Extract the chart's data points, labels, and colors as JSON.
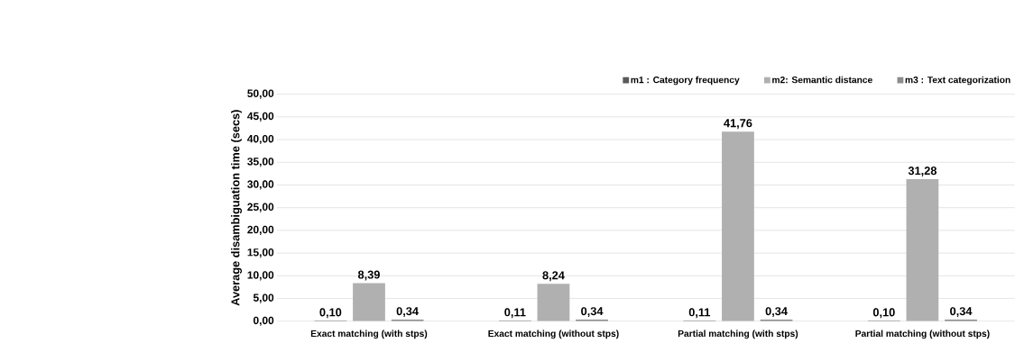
{
  "chart_data": {
    "type": "bar",
    "ylabel": "Average disambiguation time (secs)",
    "categories": [
      "Exact matching (with stps)",
      "Exact  matching (without stps)",
      "Partial matching (with stps)",
      "Partial  matching (without stps)"
    ],
    "series": [
      {
        "name": "m1 : Category frequency",
        "color": "#595959",
        "values": [
          0.1,
          0.11,
          0.11,
          0.1
        ],
        "value_labels": [
          "0,10",
          "0,11",
          "0,11",
          "0,10"
        ]
      },
      {
        "name": "m2: Semantic distance",
        "color": "#b0b0b0",
        "values": [
          8.39,
          8.24,
          41.76,
          31.28
        ],
        "value_labels": [
          "8,39",
          "8,24",
          "41,76",
          "31,28"
        ]
      },
      {
        "name": "m3 : Text categorization",
        "color": "#8c8c8c",
        "values": [
          0.34,
          0.34,
          0.34,
          0.34
        ],
        "value_labels": [
          "0,34",
          "0,34",
          "0,34",
          "0,34"
        ]
      }
    ],
    "ylim": [
      0,
      50
    ],
    "yticks": [
      {
        "value": 0,
        "label": "0,00"
      },
      {
        "value": 5,
        "label": "5,00"
      },
      {
        "value": 10,
        "label": "10,00"
      },
      {
        "value": 15,
        "label": "15,00"
      },
      {
        "value": 20,
        "label": "20,00"
      },
      {
        "value": 25,
        "label": "25,00"
      },
      {
        "value": 30,
        "label": "30,00"
      },
      {
        "value": 35,
        "label": "35,00"
      },
      {
        "value": 40,
        "label": "40,00"
      },
      {
        "value": 45,
        "label": "45,00"
      },
      {
        "value": 50,
        "label": "50,00"
      }
    ],
    "grid": "y",
    "legend": "top right"
  }
}
